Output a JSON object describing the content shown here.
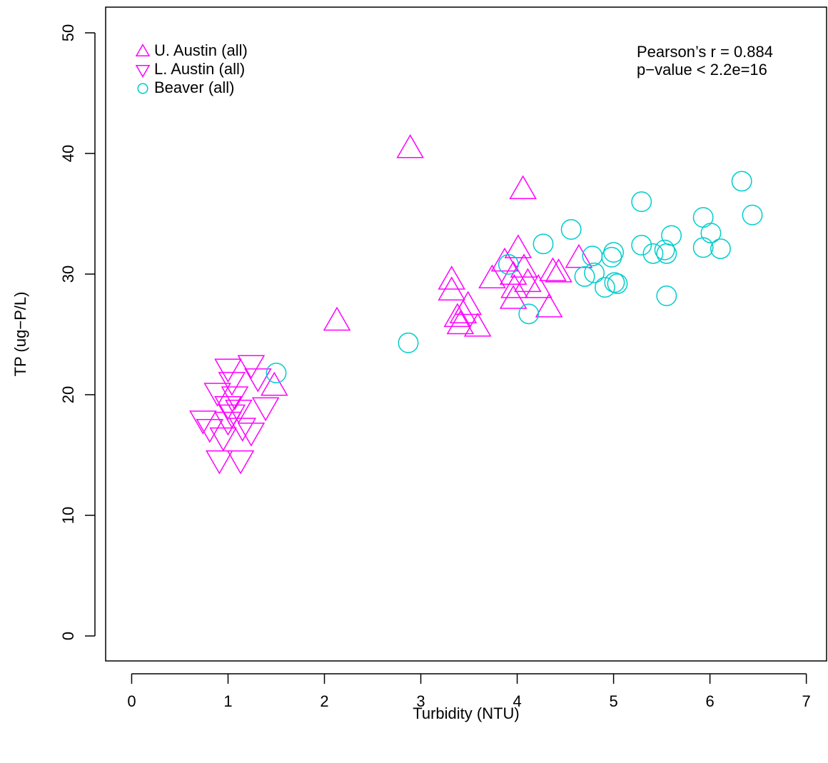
{
  "chart_data": {
    "type": "scatter",
    "x_label": "Turbidity (NTU)",
    "y_label": "TP (ug−P/L)",
    "xlim": [
      -0.27,
      7.21
    ],
    "ylim": [
      -2.07,
      52.13
    ],
    "xticks": [
      0,
      1,
      2,
      3,
      4,
      5,
      6,
      7
    ],
    "yticks": [
      0,
      10,
      20,
      30,
      40,
      50
    ],
    "legend": "top-left",
    "annotations": [
      "Pearson’s r = 0.884",
      "p−value < 2.2e=16"
    ],
    "series": [
      {
        "name": "U. Austin (all)",
        "color": "#ff00ff",
        "marker": "triangle-up",
        "x": [
          2.89,
          4.06,
          2.13,
          1.48,
          3.32,
          3.32,
          3.74,
          3.87,
          4.01,
          3.49,
          3.38,
          3.41,
          3.59,
          3.96,
          4.07,
          4.11,
          3.97,
          3.96,
          4.22,
          4.33,
          4.37,
          4.43,
          4.64,
          3.44
        ],
        "values": [
          40.4,
          37.0,
          26.1,
          20.7,
          29.5,
          28.6,
          29.6,
          31.0,
          32.1,
          27.4,
          26.4,
          25.8,
          25.6,
          29.9,
          30.5,
          29.3,
          28.8,
          27.9,
          28.8,
          27.2,
          30.2,
          30.1,
          31.3,
          26.7
        ]
      },
      {
        "name": "L. Austin (all)",
        "color": "#ff00ff",
        "marker": "triangle-down",
        "x": [
          0.91,
          1.13,
          1.0,
          1.24,
          1.31,
          1.04,
          0.89,
          1.07,
          1.0,
          1.11,
          1.39,
          0.74,
          0.81,
          1.0,
          1.15,
          1.24,
          0.95,
          1.04
        ],
        "values": [
          14.6,
          14.6,
          22.2,
          22.5,
          21.4,
          21.1,
          20.2,
          19.9,
          19.1,
          18.8,
          19.0,
          17.9,
          17.2,
          17.8,
          17.3,
          16.9,
          16.5,
          18.4
        ]
      },
      {
        "name": "Beaver (all)",
        "color": "#00cdcd",
        "marker": "circle",
        "x": [
          1.5,
          2.87,
          3.91,
          4.12,
          4.27,
          4.56,
          4.7,
          4.78,
          4.8,
          4.91,
          4.98,
          5.0,
          5.01,
          5.04,
          5.29,
          5.29,
          5.41,
          5.53,
          5.55,
          5.55,
          5.6,
          5.93,
          5.93,
          6.01,
          6.11,
          6.33,
          6.44
        ],
        "values": [
          21.8,
          24.3,
          30.8,
          26.7,
          32.5,
          33.7,
          29.8,
          31.5,
          30.1,
          28.9,
          31.4,
          31.8,
          29.3,
          29.2,
          36.0,
          32.4,
          31.7,
          32.0,
          31.7,
          28.2,
          33.2,
          34.7,
          32.2,
          33.4,
          32.1,
          37.7,
          34.9
        ]
      }
    ]
  }
}
